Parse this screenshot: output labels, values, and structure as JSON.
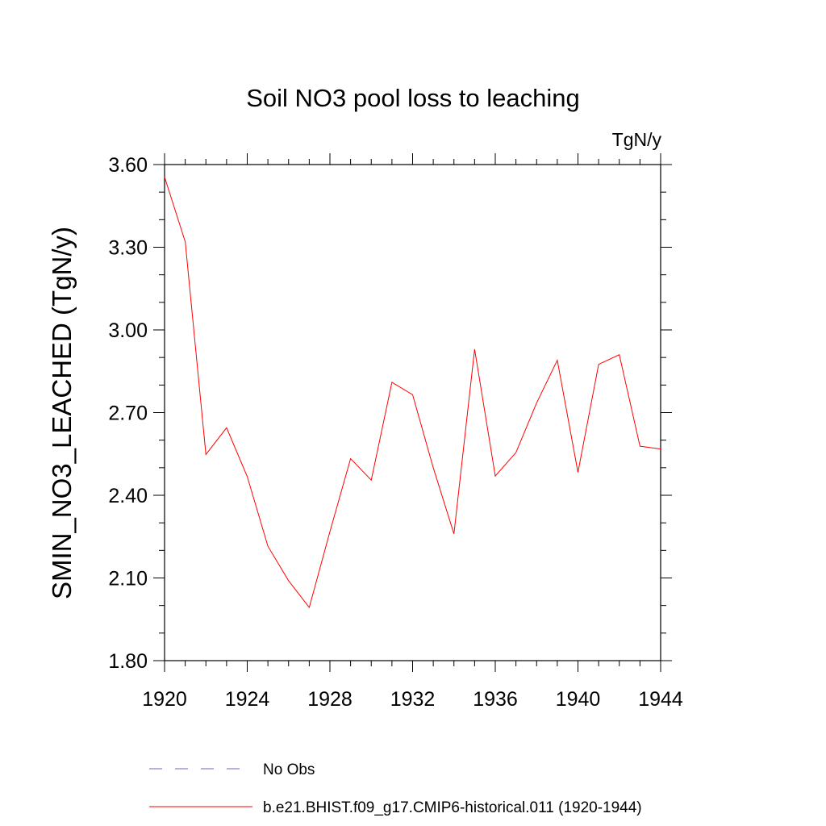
{
  "chart_data": {
    "type": "line",
    "title": "Soil NO3 pool loss to leaching",
    "units_label": "TgN/y",
    "ylabel": "SMIN_NO3_LEACHED  (TgN/y)",
    "xlabel": "",
    "xlim": [
      1920,
      1944
    ],
    "ylim": [
      1.8,
      3.6
    ],
    "x_ticks": [
      "1920",
      "1924",
      "1928",
      "1932",
      "1936",
      "1940",
      "1944"
    ],
    "y_ticks": [
      "1.80",
      "2.10",
      "2.40",
      "2.70",
      "3.00",
      "3.30",
      "3.60"
    ],
    "x": [
      1920,
      1921,
      1922,
      1923,
      1924,
      1925,
      1926,
      1927,
      1928,
      1929,
      1930,
      1931,
      1932,
      1933,
      1934,
      1935,
      1936,
      1937,
      1938,
      1939,
      1940,
      1941,
      1942,
      1943,
      1944
    ],
    "series": [
      {
        "name": "b.e21.BHIST.f09_g17.CMIP6-historical.011 (1920-1944)",
        "color": "#ff0000",
        "style": "solid",
        "values": [
          3.555,
          3.32,
          2.548,
          2.645,
          2.468,
          2.215,
          2.09,
          1.993,
          2.268,
          2.533,
          2.455,
          2.81,
          2.765,
          2.5,
          2.26,
          2.93,
          2.47,
          2.555,
          2.735,
          2.89,
          2.483,
          2.875,
          2.91,
          2.578,
          2.568
        ]
      }
    ],
    "legend": {
      "placement": "bottom",
      "entries": [
        {
          "label": "No Obs",
          "color": "#6666cc",
          "style": "dashed"
        },
        {
          "label": "b.e21.BHIST.f09_g17.CMIP6-historical.011 (1920-1944)",
          "color": "#ff0000",
          "style": "solid"
        }
      ]
    },
    "grid": false
  }
}
